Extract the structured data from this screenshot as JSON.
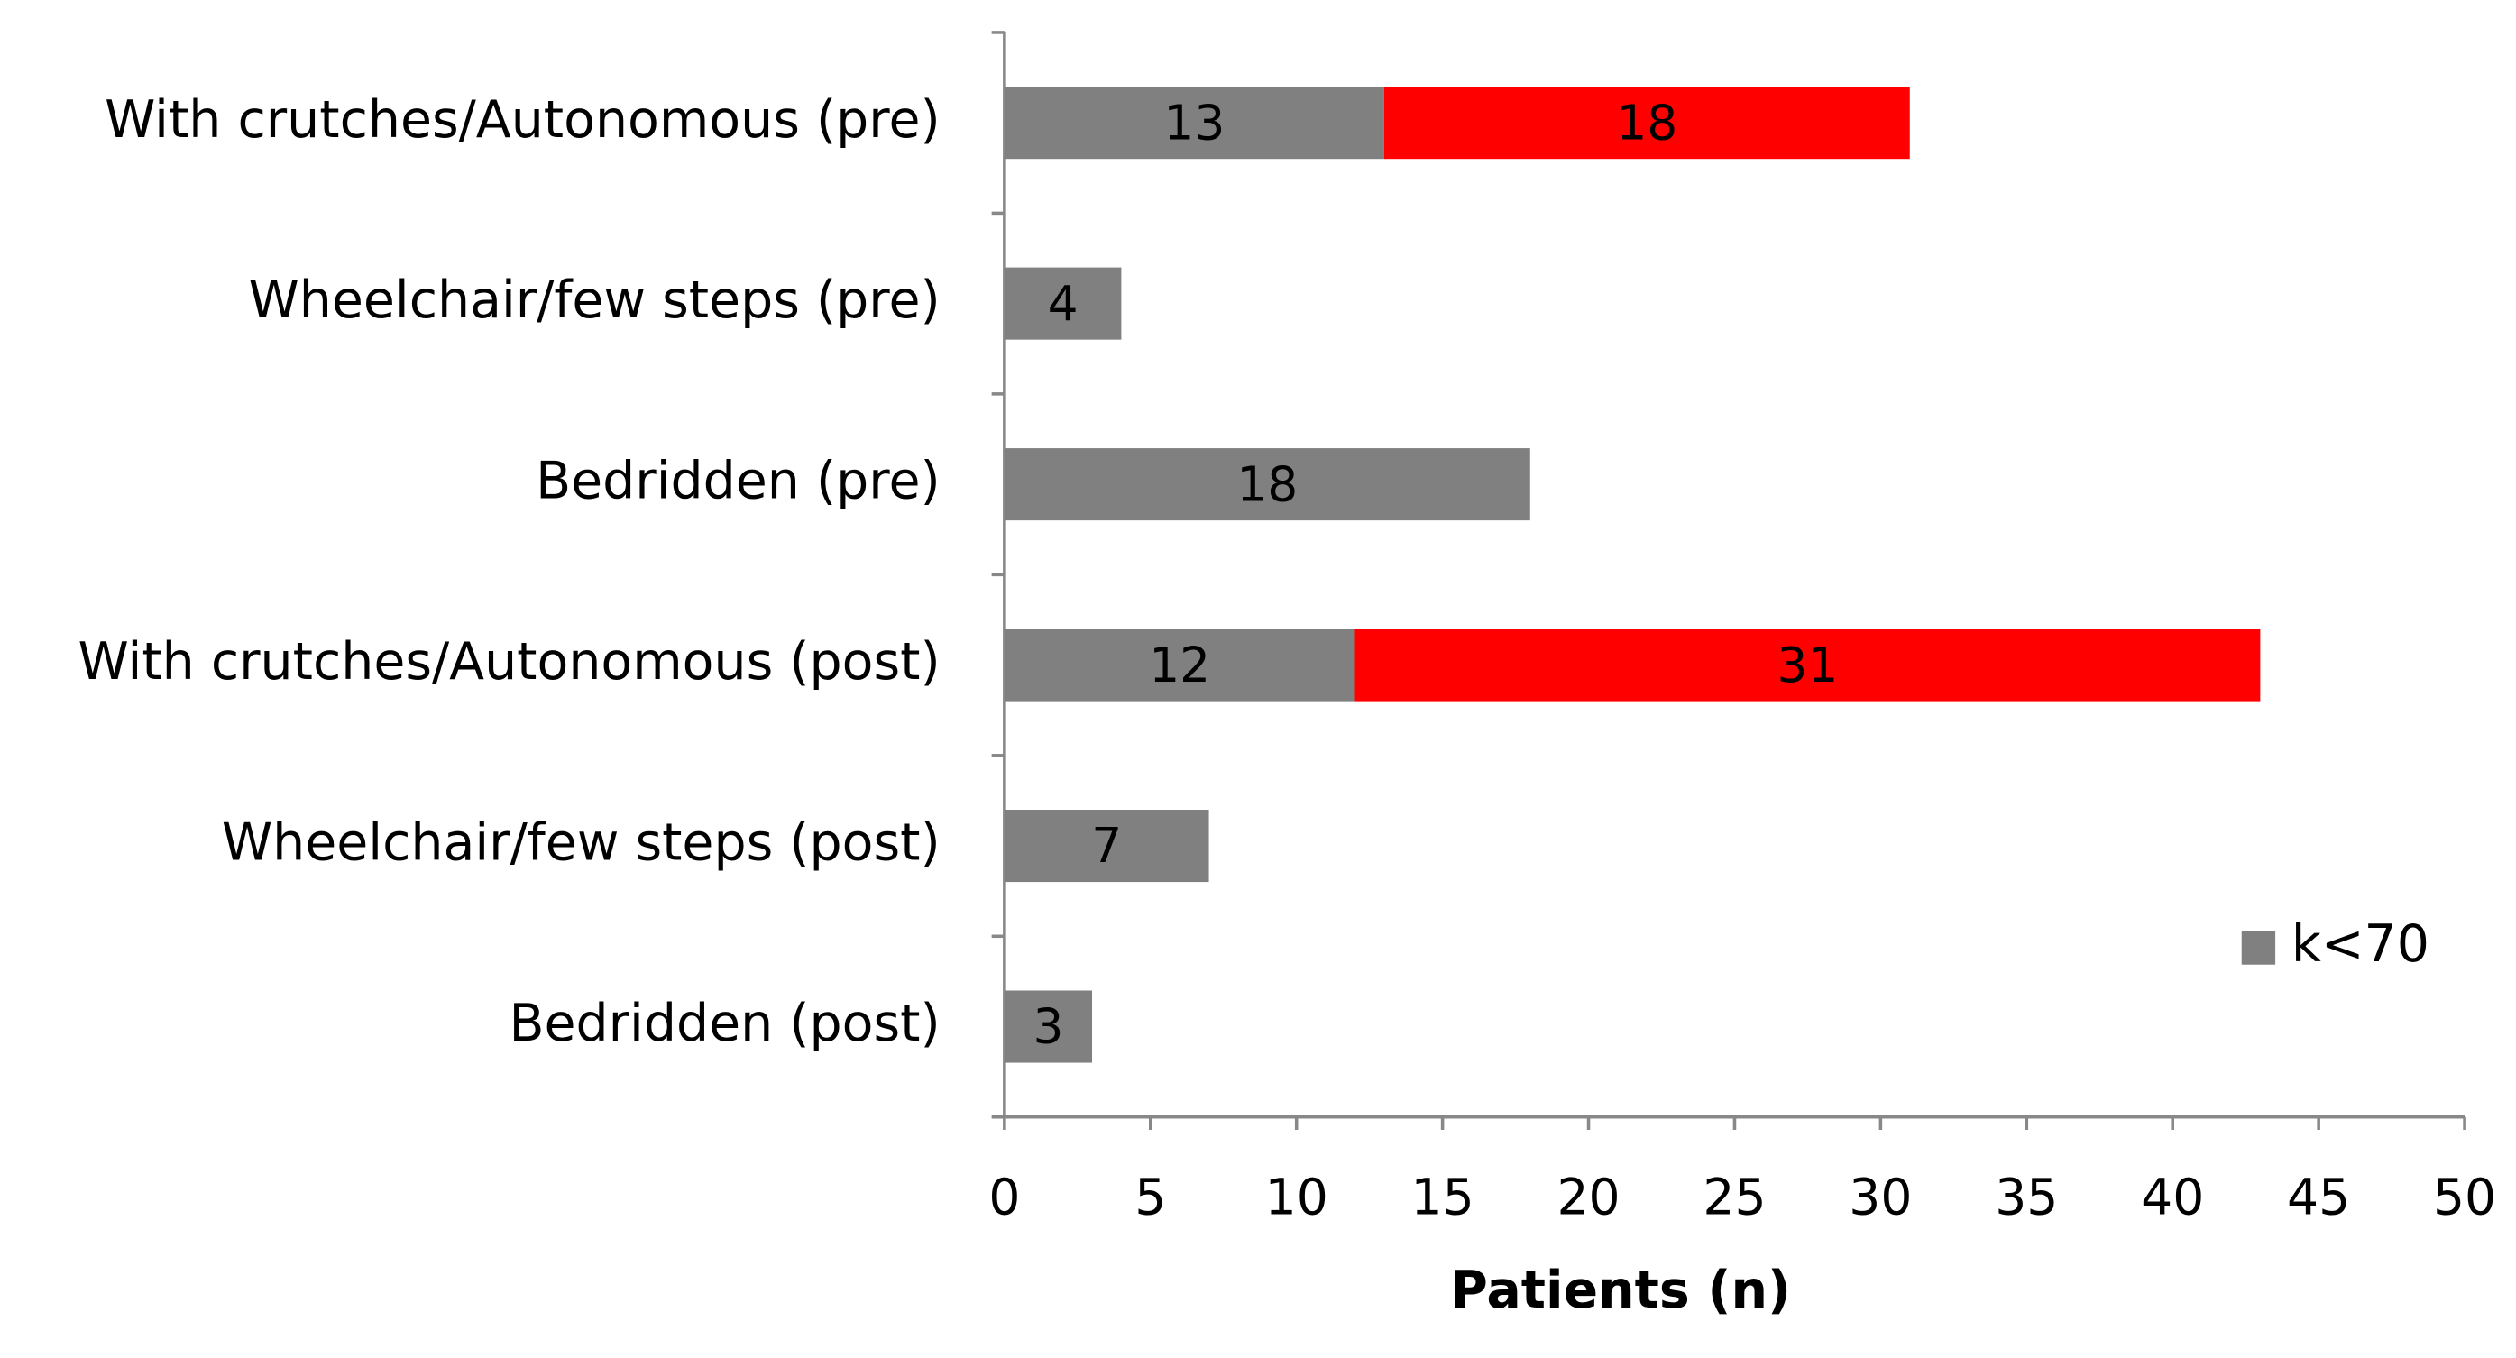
{
  "chart_data": {
    "type": "stacked-barh",
    "xlabel": "Patients (n)",
    "categories": [
      "With crutches/Autonomous (pre)",
      "Wheelchair/few steps (pre)",
      "Bedridden (pre)",
      "With crutches/Autonomous (post)",
      "Wheelchair/few steps (post)",
      "Bedridden (post)"
    ],
    "series": [
      {
        "name": "k<70",
        "color": "#808080",
        "values": [
          13,
          4,
          18,
          12,
          7,
          3
        ]
      },
      {
        "color": "#ff0000",
        "values": [
          18,
          null,
          null,
          31,
          null,
          null
        ]
      }
    ],
    "xlim": [
      0,
      50
    ],
    "xticks": [
      0,
      5,
      10,
      15,
      20,
      25,
      30,
      35,
      40,
      45,
      50
    ],
    "legend": "right"
  }
}
